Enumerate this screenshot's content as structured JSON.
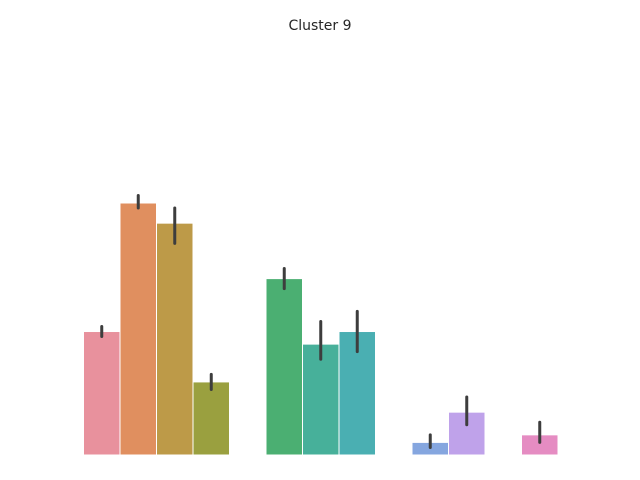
{
  "chart_data": {
    "type": "bar",
    "title": "Cluster 9",
    "xlabel": "",
    "ylabel": "",
    "grid": false,
    "ylim": [
      0,
      1
    ],
    "bars": [
      {
        "value": 0.49,
        "err": [
          0.47,
          0.51
        ],
        "color": "#e8919d"
      },
      {
        "value": 1.0,
        "err": [
          0.98,
          1.03
        ],
        "color": "#e08f5f"
      },
      {
        "value": 0.92,
        "err": [
          0.84,
          0.98
        ],
        "color": "#bd9a48"
      },
      {
        "value": 0.29,
        "err": [
          0.26,
          0.32
        ],
        "color": "#9aa03f"
      },
      {
        "value": 0.7,
        "err": [
          0.66,
          0.74
        ],
        "color": "#4baf72"
      },
      {
        "value": 0.44,
        "err": [
          0.38,
          0.53
        ],
        "color": "#47b09a"
      },
      {
        "value": 0.49,
        "err": [
          0.41,
          0.57
        ],
        "color": "#4aafb2"
      },
      {
        "value": 0.05,
        "err": [
          0.03,
          0.08
        ],
        "color": "#85a6df"
      },
      {
        "value": 0.17,
        "err": [
          0.12,
          0.23
        ],
        "color": "#bfa2ea"
      },
      {
        "value": 0.08,
        "err": [
          0.05,
          0.13
        ],
        "color": "#e58cc2"
      }
    ]
  }
}
